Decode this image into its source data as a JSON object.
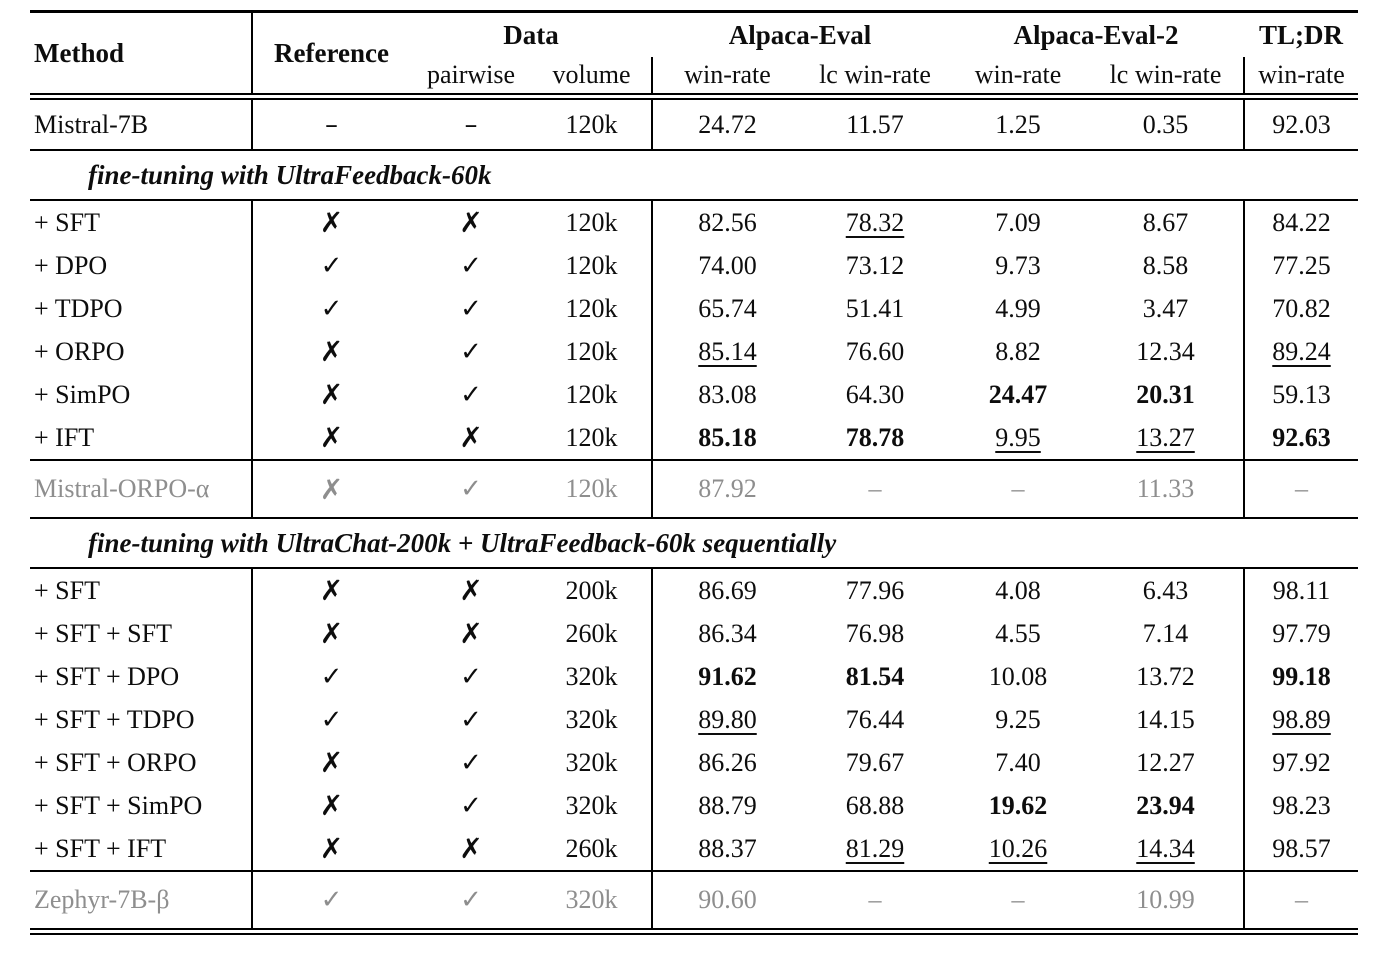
{
  "header": {
    "method": "Method",
    "reference": "Reference",
    "data_group": "Data",
    "pairwise": "pairwise",
    "volume": "volume",
    "alpaca_eval": "Alpaca-Eval",
    "alpaca_eval_2": "Alpaca-Eval-2",
    "tldr": "TL;DR",
    "win_rate": "win-rate",
    "lc_win_rate": "lc win-rate"
  },
  "sections": {
    "s1": "fine-tuning with UltraFeedback-60k",
    "s2": "fine-tuning with UltraChat-200k + UltraFeedback-60k sequentially"
  },
  "rows": [
    {
      "label": "Mistral-7B",
      "ref": "–",
      "pair": "–",
      "vol": "120k",
      "v": [
        "24.72",
        "11.57",
        "1.25",
        "0.35",
        "92.03"
      ],
      "st": [
        "",
        "",
        "",
        "",
        ""
      ]
    },
    {
      "label": "+ SFT",
      "ref": "✗",
      "pair": "✗",
      "vol": "120k",
      "v": [
        "82.56",
        "78.32",
        "7.09",
        "8.67",
        "84.22"
      ],
      "st": [
        "",
        "u",
        "",
        "",
        ""
      ]
    },
    {
      "label": "+ DPO",
      "ref": "✓",
      "pair": "✓",
      "vol": "120k",
      "v": [
        "74.00",
        "73.12",
        "9.73",
        "8.58",
        "77.25"
      ],
      "st": [
        "",
        "",
        "",
        "",
        ""
      ]
    },
    {
      "label": "+ TDPO",
      "ref": "✓",
      "pair": "✓",
      "vol": "120k",
      "v": [
        "65.74",
        "51.41",
        "4.99",
        "3.47",
        "70.82"
      ],
      "st": [
        "",
        "",
        "",
        "",
        ""
      ]
    },
    {
      "label": "+ ORPO",
      "ref": "✗",
      "pair": "✓",
      "vol": "120k",
      "v": [
        "85.14",
        "76.60",
        "8.82",
        "12.34",
        "89.24"
      ],
      "st": [
        "u",
        "",
        "",
        "",
        "u"
      ]
    },
    {
      "label": "+ SimPO",
      "ref": "✗",
      "pair": "✓",
      "vol": "120k",
      "v": [
        "83.08",
        "64.30",
        "24.47",
        "20.31",
        "59.13"
      ],
      "st": [
        "",
        "",
        "b",
        "b",
        ""
      ]
    },
    {
      "label": "+ IFT",
      "ref": "✗",
      "pair": "✗",
      "vol": "120k",
      "v": [
        "85.18",
        "78.78",
        "9.95",
        "13.27",
        "92.63"
      ],
      "st": [
        "b",
        "b",
        "u",
        "u",
        "b"
      ]
    },
    {
      "label": "Mistral-ORPO-α",
      "ref": "✗",
      "pair": "✓",
      "vol": "120k",
      "v": [
        "87.92",
        "–",
        "–",
        "11.33",
        "–"
      ],
      "st": [
        "",
        "",
        "",
        "",
        ""
      ]
    },
    {
      "label": "+ SFT",
      "ref": "✗",
      "pair": "✗",
      "vol": "200k",
      "v": [
        "86.69",
        "77.96",
        "4.08",
        "6.43",
        "98.11"
      ],
      "st": [
        "",
        "",
        "",
        "",
        ""
      ]
    },
    {
      "label": "+ SFT + SFT",
      "ref": "✗",
      "pair": "✗",
      "vol": "260k",
      "v": [
        "86.34",
        "76.98",
        "4.55",
        "7.14",
        "97.79"
      ],
      "st": [
        "",
        "",
        "",
        "",
        ""
      ]
    },
    {
      "label": "+ SFT + DPO",
      "ref": "✓",
      "pair": "✓",
      "vol": "320k",
      "v": [
        "91.62",
        "81.54",
        "10.08",
        "13.72",
        "99.18"
      ],
      "st": [
        "b",
        "b",
        "",
        "",
        "b"
      ]
    },
    {
      "label": "+ SFT + TDPO",
      "ref": "✓",
      "pair": "✓",
      "vol": "320k",
      "v": [
        "89.80",
        "76.44",
        "9.25",
        "14.15",
        "98.89"
      ],
      "st": [
        "u",
        "",
        "",
        "",
        "u"
      ]
    },
    {
      "label": "+ SFT + ORPO",
      "ref": "✗",
      "pair": "✓",
      "vol": "320k",
      "v": [
        "86.26",
        "79.67",
        "7.40",
        "12.27",
        "97.92"
      ],
      "st": [
        "",
        "",
        "",
        "",
        ""
      ]
    },
    {
      "label": "+ SFT + SimPO",
      "ref": "✗",
      "pair": "✓",
      "vol": "320k",
      "v": [
        "88.79",
        "68.88",
        "19.62",
        "23.94",
        "98.23"
      ],
      "st": [
        "",
        "",
        "b",
        "b",
        ""
      ]
    },
    {
      "label": "+ SFT + IFT",
      "ref": "✗",
      "pair": "✗",
      "vol": "260k",
      "v": [
        "88.37",
        "81.29",
        "10.26",
        "14.34",
        "98.57"
      ],
      "st": [
        "",
        "u",
        "u",
        "u",
        ""
      ]
    },
    {
      "label": "Zephyr-7B-β",
      "ref": "✓",
      "pair": "✓",
      "vol": "320k",
      "v": [
        "90.60",
        "–",
        "–",
        "10.99",
        "–"
      ],
      "st": [
        "",
        "",
        "",
        "",
        ""
      ]
    }
  ]
}
